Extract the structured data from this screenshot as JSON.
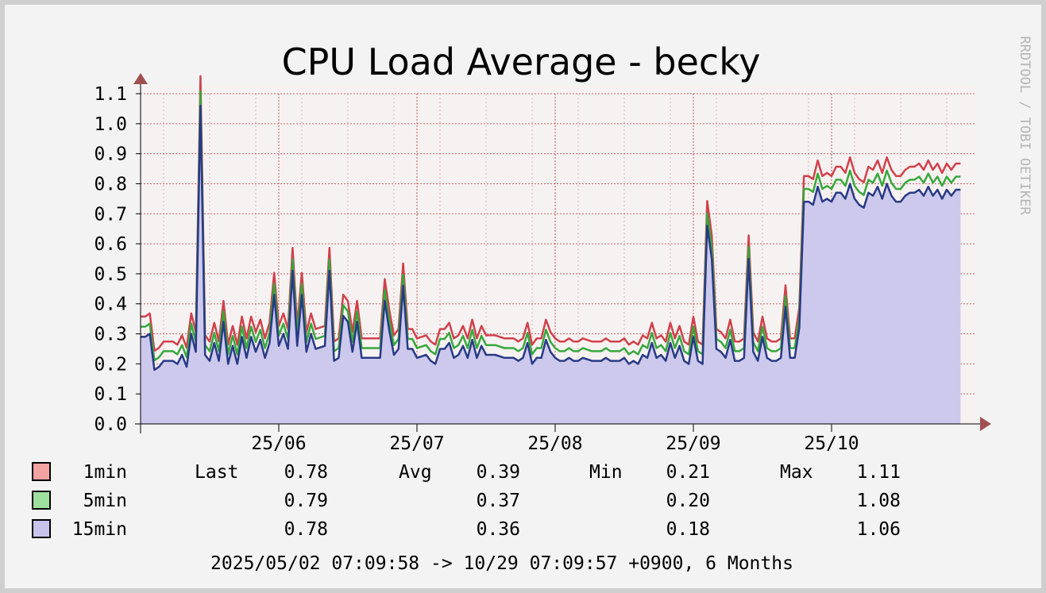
{
  "chart_data": {
    "type": "area",
    "title": "CPU Load Average - becky",
    "watermark": "RRDTOOL / TOBI OETIKER",
    "ylim": [
      0,
      1.1
    ],
    "y_ticks": [
      "0.0",
      "0.1",
      "0.2",
      "0.3",
      "0.4",
      "0.5",
      "0.6",
      "0.7",
      "0.8",
      "0.9",
      "1.0",
      "1.1"
    ],
    "x_ticks": [
      "25/06",
      "25/07",
      "25/08",
      "25/09",
      "25/10"
    ],
    "x_range_days": [
      0,
      180
    ],
    "x_tick_days": [
      30,
      60,
      90,
      120,
      150
    ],
    "grid": true,
    "colors": {
      "plot_bg": "#f7f2f2",
      "grid": "#b03030",
      "area": "#cdc9ec",
      "1min": "#d0414a",
      "5min": "#36a83c",
      "15min": "#283a86",
      "axis_arrow": "#a05050"
    },
    "series": [
      {
        "name": "1min",
        "last": "0.78",
        "avg": "0.39",
        "min": "0.21",
        "max": "1.11",
        "swatch": "#f4a3a3"
      },
      {
        "name": "5min",
        "last": "0.79",
        "avg": "0.37",
        "min": "0.20",
        "max": "1.08",
        "swatch": "#9ee09e"
      },
      {
        "name": "15min",
        "last": "0.78",
        "avg": "0.36",
        "min": "0.18",
        "max": "1.06",
        "swatch": "#c7c3eb"
      }
    ],
    "legend_labels": {
      "last": "Last",
      "avg": "Avg",
      "min": "Min",
      "max": "Max"
    },
    "time_range": "2025/05/02 07:09:58 -> 10/29 07:09:57 +0900, 6 Months",
    "points_15min": [
      [
        0,
        0.29
      ],
      [
        1,
        0.29
      ],
      [
        2,
        0.3
      ],
      [
        3,
        0.18
      ],
      [
        4,
        0.19
      ],
      [
        5,
        0.21
      ],
      [
        7,
        0.21
      ],
      [
        8,
        0.2
      ],
      [
        9,
        0.23
      ],
      [
        10,
        0.19
      ],
      [
        11,
        0.3
      ],
      [
        12,
        0.24
      ],
      [
        13,
        1.06
      ],
      [
        14,
        0.23
      ],
      [
        15,
        0.21
      ],
      [
        16,
        0.27
      ],
      [
        17,
        0.21
      ],
      [
        18,
        0.34
      ],
      [
        19,
        0.2
      ],
      [
        20,
        0.26
      ],
      [
        21,
        0.2
      ],
      [
        22,
        0.29
      ],
      [
        23,
        0.22
      ],
      [
        24,
        0.29
      ],
      [
        25,
        0.24
      ],
      [
        26,
        0.28
      ],
      [
        27,
        0.22
      ],
      [
        28,
        0.27
      ],
      [
        29,
        0.43
      ],
      [
        30,
        0.26
      ],
      [
        31,
        0.3
      ],
      [
        32,
        0.25
      ],
      [
        33,
        0.51
      ],
      [
        34,
        0.26
      ],
      [
        35,
        0.43
      ],
      [
        36,
        0.24
      ],
      [
        37,
        0.3
      ],
      [
        38,
        0.25
      ],
      [
        40,
        0.26
      ],
      [
        41,
        0.51
      ],
      [
        42,
        0.21
      ],
      [
        43,
        0.22
      ],
      [
        44,
        0.36
      ],
      [
        45,
        0.34
      ],
      [
        46,
        0.24
      ],
      [
        47,
        0.34
      ],
      [
        48,
        0.22
      ],
      [
        49,
        0.22
      ],
      [
        51,
        0.22
      ],
      [
        52,
        0.22
      ],
      [
        53,
        0.41
      ],
      [
        54,
        0.31
      ],
      [
        55,
        0.23
      ],
      [
        56,
        0.25
      ],
      [
        57,
        0.46
      ],
      [
        58,
        0.25
      ],
      [
        59,
        0.25
      ],
      [
        60,
        0.22
      ],
      [
        62,
        0.23
      ],
      [
        63,
        0.21
      ],
      [
        64,
        0.2
      ],
      [
        65,
        0.25
      ],
      [
        66,
        0.25
      ],
      [
        67,
        0.27
      ],
      [
        68,
        0.22
      ],
      [
        69,
        0.23
      ],
      [
        70,
        0.26
      ],
      [
        71,
        0.22
      ],
      [
        72,
        0.28
      ],
      [
        73,
        0.22
      ],
      [
        74,
        0.26
      ],
      [
        75,
        0.23
      ],
      [
        77,
        0.23
      ],
      [
        79,
        0.22
      ],
      [
        81,
        0.22
      ],
      [
        82,
        0.21
      ],
      [
        83,
        0.22
      ],
      [
        84,
        0.27
      ],
      [
        85,
        0.2
      ],
      [
        86,
        0.22
      ],
      [
        87,
        0.22
      ],
      [
        88,
        0.28
      ],
      [
        89,
        0.24
      ],
      [
        90,
        0.22
      ],
      [
        91,
        0.21
      ],
      [
        92,
        0.21
      ],
      [
        93,
        0.22
      ],
      [
        94,
        0.21
      ],
      [
        95,
        0.21
      ],
      [
        96,
        0.22
      ],
      [
        98,
        0.21
      ],
      [
        99,
        0.21
      ],
      [
        100,
        0.21
      ],
      [
        101,
        0.22
      ],
      [
        102,
        0.21
      ],
      [
        103,
        0.21
      ],
      [
        104,
        0.21
      ],
      [
        105,
        0.22
      ],
      [
        106,
        0.2
      ],
      [
        107,
        0.21
      ],
      [
        108,
        0.2
      ],
      [
        109,
        0.23
      ],
      [
        110,
        0.22
      ],
      [
        111,
        0.27
      ],
      [
        112,
        0.22
      ],
      [
        113,
        0.23
      ],
      [
        114,
        0.21
      ],
      [
        115,
        0.27
      ],
      [
        116,
        0.22
      ],
      [
        117,
        0.26
      ],
      [
        118,
        0.21
      ],
      [
        119,
        0.2
      ],
      [
        120,
        0.29
      ],
      [
        121,
        0.21
      ],
      [
        122,
        0.2
      ],
      [
        123,
        0.66
      ],
      [
        124,
        0.55
      ],
      [
        125,
        0.25
      ],
      [
        126,
        0.24
      ],
      [
        127,
        0.22
      ],
      [
        128,
        0.28
      ],
      [
        129,
        0.21
      ],
      [
        130,
        0.21
      ],
      [
        131,
        0.22
      ],
      [
        132,
        0.55
      ],
      [
        133,
        0.24
      ],
      [
        134,
        0.21
      ],
      [
        135,
        0.29
      ],
      [
        136,
        0.22
      ],
      [
        137,
        0.21
      ],
      [
        138,
        0.21
      ],
      [
        139,
        0.22
      ],
      [
        140,
        0.39
      ],
      [
        141,
        0.22
      ],
      [
        142,
        0.22
      ],
      [
        143,
        0.32
      ],
      [
        144,
        0.74
      ],
      [
        145,
        0.74
      ],
      [
        146,
        0.73
      ],
      [
        147,
        0.79
      ],
      [
        148,
        0.74
      ],
      [
        149,
        0.75
      ],
      [
        150,
        0.74
      ],
      [
        151,
        0.77
      ],
      [
        152,
        0.77
      ],
      [
        153,
        0.75
      ],
      [
        154,
        0.8
      ],
      [
        155,
        0.75
      ],
      [
        156,
        0.73
      ],
      [
        157,
        0.72
      ],
      [
        158,
        0.77
      ],
      [
        159,
        0.76
      ],
      [
        160,
        0.79
      ],
      [
        161,
        0.75
      ],
      [
        162,
        0.8
      ],
      [
        163,
        0.76
      ],
      [
        164,
        0.74
      ],
      [
        165,
        0.74
      ],
      [
        166,
        0.76
      ],
      [
        167,
        0.77
      ],
      [
        168,
        0.77
      ],
      [
        169,
        0.78
      ],
      [
        170,
        0.76
      ],
      [
        171,
        0.79
      ],
      [
        172,
        0.76
      ],
      [
        173,
        0.78
      ],
      [
        174,
        0.75
      ],
      [
        175,
        0.78
      ],
      [
        176,
        0.76
      ],
      [
        177,
        0.78
      ],
      [
        178,
        0.78
      ]
    ]
  }
}
